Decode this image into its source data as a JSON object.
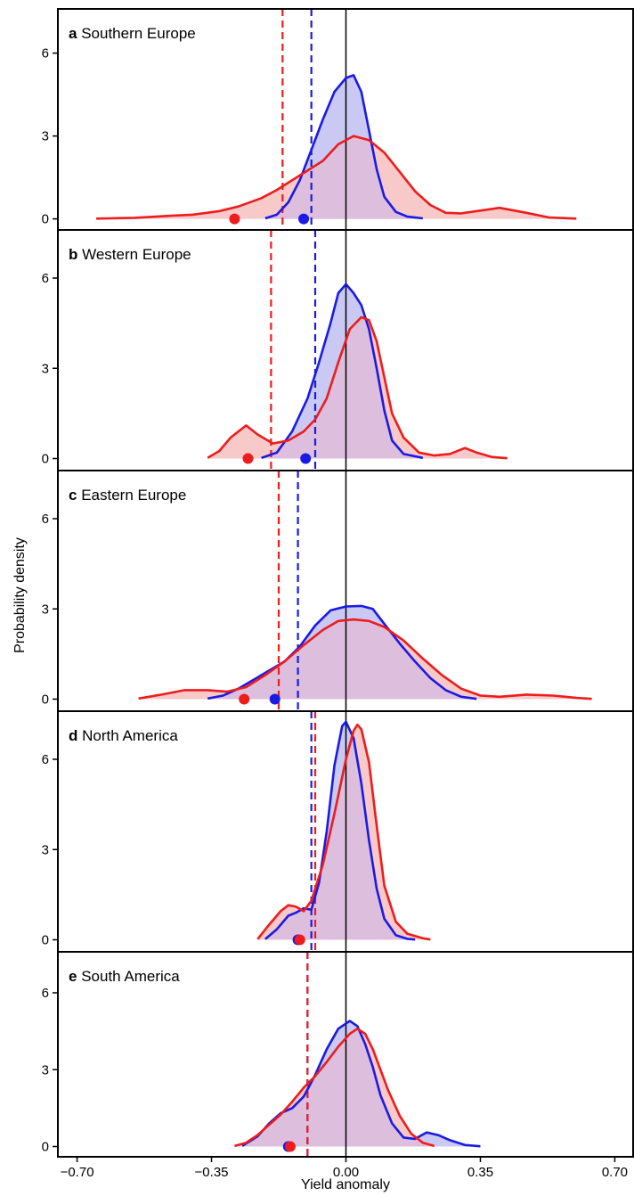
{
  "chart_data": {
    "type": "area",
    "xlabel": "Yield anomaly",
    "ylabel": "Probability density",
    "xlim": [
      -0.75,
      0.75
    ],
    "ylim": [
      -0.4,
      7.6
    ],
    "x_ticks": [
      -0.7,
      -0.35,
      0.0,
      0.35,
      0.7
    ],
    "x_tick_labels": [
      "−0.70",
      "−0.35",
      "0.00",
      "0.35",
      "0.70"
    ],
    "y_ticks": [
      0,
      3,
      6
    ],
    "y_tick_labels": [
      "0",
      "3",
      "6"
    ],
    "vertical_reference_line": 0,
    "colors": {
      "blue": "#1a1ae6",
      "red": "#ee1c1c",
      "blue_fill": "#c9c9f4",
      "red_fill": "#f7c9c9",
      "overlap_fill": "#ddbedd"
    },
    "panels": [
      {
        "letter": "a",
        "region": "Southern Europe",
        "series": [
          {
            "color": "blue",
            "x": [
              -0.21,
              -0.18,
              -0.15,
              -0.12,
              -0.09,
              -0.06,
              -0.03,
              0.0,
              0.02,
              0.04,
              0.06,
              0.08,
              0.1,
              0.13,
              0.16,
              0.2
            ],
            "y": [
              0.02,
              0.15,
              0.6,
              1.4,
              2.5,
              3.6,
              4.6,
              5.1,
              5.2,
              4.6,
              3.2,
              1.8,
              0.8,
              0.25,
              0.08,
              0.02
            ]
          },
          {
            "color": "red",
            "x": [
              -0.65,
              -0.55,
              -0.45,
              -0.4,
              -0.33,
              -0.28,
              -0.22,
              -0.18,
              -0.14,
              -0.1,
              -0.06,
              -0.02,
              0.02,
              0.06,
              0.1,
              0.14,
              0.18,
              0.22,
              0.26,
              0.3,
              0.35,
              0.4,
              0.47,
              0.53,
              0.6
            ],
            "y": [
              0.01,
              0.04,
              0.12,
              0.15,
              0.28,
              0.45,
              0.75,
              1.05,
              1.4,
              1.75,
              2.1,
              2.7,
              3.0,
              2.85,
              2.4,
              1.7,
              1.0,
              0.5,
              0.22,
              0.2,
              0.3,
              0.4,
              0.22,
              0.05,
              0.01
            ]
          }
        ],
        "dashed_lines": [
          {
            "color": "blue",
            "x": -0.09
          },
          {
            "color": "red",
            "x": -0.165
          }
        ],
        "dots": [
          {
            "color": "blue",
            "x": -0.11,
            "y": 0
          },
          {
            "color": "red",
            "x": -0.29,
            "y": 0
          }
        ]
      },
      {
        "letter": "b",
        "region": "Western Europe",
        "series": [
          {
            "color": "blue",
            "x": [
              -0.22,
              -0.18,
              -0.14,
              -0.1,
              -0.07,
              -0.04,
              -0.02,
              0.0,
              0.02,
              0.04,
              0.06,
              0.08,
              0.1,
              0.12,
              0.15,
              0.2
            ],
            "y": [
              0.02,
              0.2,
              0.9,
              2.0,
              3.2,
              4.5,
              5.5,
              5.8,
              5.5,
              5.1,
              4.3,
              3.0,
              1.6,
              0.6,
              0.15,
              0.02
            ]
          },
          {
            "color": "red",
            "x": [
              -0.36,
              -0.33,
              -0.3,
              -0.26,
              -0.23,
              -0.19,
              -0.15,
              -0.11,
              -0.08,
              -0.05,
              -0.02,
              0.01,
              0.04,
              0.06,
              0.08,
              0.1,
              0.12,
              0.15,
              0.19,
              0.23,
              0.27,
              0.31,
              0.34,
              0.38,
              0.42
            ],
            "y": [
              0.02,
              0.25,
              0.7,
              1.1,
              0.8,
              0.5,
              0.6,
              0.9,
              1.3,
              2.0,
              3.2,
              4.3,
              4.7,
              4.6,
              3.9,
              2.7,
              1.5,
              0.7,
              0.2,
              0.1,
              0.15,
              0.35,
              0.2,
              0.05,
              0.01
            ]
          }
        ],
        "dashed_lines": [
          {
            "color": "blue",
            "x": -0.08
          },
          {
            "color": "red",
            "x": -0.195
          }
        ],
        "dots": [
          {
            "color": "blue",
            "x": -0.105,
            "y": 0
          },
          {
            "color": "red",
            "x": -0.255,
            "y": 0
          }
        ]
      },
      {
        "letter": "c",
        "region": "Eastern Europe",
        "series": [
          {
            "color": "blue",
            "x": [
              -0.36,
              -0.32,
              -0.28,
              -0.24,
              -0.2,
              -0.16,
              -0.12,
              -0.08,
              -0.04,
              0.0,
              0.04,
              0.07,
              0.1,
              0.14,
              0.18,
              0.22,
              0.26,
              0.3,
              0.34
            ],
            "y": [
              0.02,
              0.12,
              0.35,
              0.65,
              0.95,
              1.25,
              1.75,
              2.45,
              2.95,
              3.08,
              3.1,
              3.0,
              2.5,
              1.85,
              1.25,
              0.7,
              0.3,
              0.08,
              0.01
            ]
          },
          {
            "color": "red",
            "x": [
              -0.54,
              -0.48,
              -0.42,
              -0.36,
              -0.31,
              -0.26,
              -0.21,
              -0.16,
              -0.11,
              -0.06,
              -0.02,
              0.02,
              0.06,
              0.1,
              0.15,
              0.2,
              0.25,
              0.3,
              0.35,
              0.4,
              0.47,
              0.54,
              0.6,
              0.64
            ],
            "y": [
              0.02,
              0.15,
              0.3,
              0.3,
              0.25,
              0.4,
              0.8,
              1.25,
              1.8,
              2.3,
              2.6,
              2.65,
              2.6,
              2.4,
              1.95,
              1.35,
              0.8,
              0.35,
              0.12,
              0.08,
              0.15,
              0.12,
              0.04,
              0.01
            ]
          }
        ],
        "dashed_lines": [
          {
            "color": "blue",
            "x": -0.125
          },
          {
            "color": "red",
            "x": -0.175
          }
        ],
        "dots": [
          {
            "color": "blue",
            "x": -0.185,
            "y": 0
          },
          {
            "color": "red",
            "x": -0.265,
            "y": 0
          }
        ]
      },
      {
        "letter": "d",
        "region": "North America",
        "series": [
          {
            "color": "blue",
            "x": [
              -0.21,
              -0.18,
              -0.15,
              -0.13,
              -0.11,
              -0.09,
              -0.07,
              -0.05,
              -0.03,
              -0.01,
              0.0,
              0.02,
              0.04,
              0.06,
              0.08,
              0.1,
              0.13,
              0.16,
              0.18
            ],
            "y": [
              0.02,
              0.35,
              0.8,
              0.9,
              1.05,
              1.0,
              1.9,
              3.6,
              5.8,
              7.1,
              7.25,
              6.7,
              5.2,
              3.3,
              1.7,
              0.7,
              0.15,
              0.03,
              0.01
            ]
          },
          {
            "color": "red",
            "x": [
              -0.23,
              -0.2,
              -0.17,
              -0.15,
              -0.13,
              -0.11,
              -0.09,
              -0.06,
              -0.03,
              0.0,
              0.02,
              0.03,
              0.04,
              0.06,
              0.08,
              0.1,
              0.13,
              0.16,
              0.2,
              0.22
            ],
            "y": [
              0.02,
              0.5,
              0.95,
              1.15,
              1.1,
              0.95,
              1.3,
              2.5,
              4.2,
              6.0,
              6.95,
              7.15,
              7.0,
              5.9,
              3.8,
              1.8,
              0.6,
              0.2,
              0.05,
              0.01
            ]
          }
        ],
        "dashed_lines": [
          {
            "color": "blue",
            "x": -0.09
          },
          {
            "color": "red",
            "x": -0.08
          }
        ],
        "dots": [
          {
            "color": "blue",
            "x": -0.125,
            "y": 0
          },
          {
            "color": "red",
            "x": -0.12,
            "y": 0
          }
        ]
      },
      {
        "letter": "e",
        "region": "South America",
        "series": [
          {
            "color": "blue",
            "x": [
              -0.27,
              -0.23,
              -0.2,
              -0.17,
              -0.14,
              -0.11,
              -0.08,
              -0.05,
              -0.02,
              0.01,
              0.03,
              0.05,
              0.07,
              0.09,
              0.12,
              0.15,
              0.18,
              0.21,
              0.24,
              0.27,
              0.31,
              0.35
            ],
            "y": [
              0.02,
              0.4,
              0.9,
              1.3,
              1.5,
              1.95,
              2.8,
              3.8,
              4.6,
              4.9,
              4.7,
              4.0,
              3.1,
              2.0,
              0.9,
              0.35,
              0.3,
              0.55,
              0.45,
              0.25,
              0.06,
              0.01
            ]
          },
          {
            "color": "red",
            "x": [
              -0.29,
              -0.26,
              -0.23,
              -0.2,
              -0.17,
              -0.14,
              -0.11,
              -0.08,
              -0.05,
              -0.02,
              0.01,
              0.03,
              0.05,
              0.07,
              0.09,
              0.11,
              0.14,
              0.17,
              0.2,
              0.23
            ],
            "y": [
              0.02,
              0.15,
              0.45,
              0.85,
              1.25,
              1.75,
              2.3,
              2.75,
              3.3,
              3.9,
              4.4,
              4.6,
              4.4,
              3.8,
              3.0,
              2.2,
              1.2,
              0.5,
              0.15,
              0.02
            ]
          }
        ],
        "dashed_lines": [
          {
            "color": "blue",
            "x": -0.1
          },
          {
            "color": "red",
            "x": -0.1
          }
        ],
        "dots": [
          {
            "color": "blue",
            "x": -0.15,
            "y": 0
          },
          {
            "color": "red",
            "x": -0.145,
            "y": 0
          }
        ]
      }
    ]
  }
}
